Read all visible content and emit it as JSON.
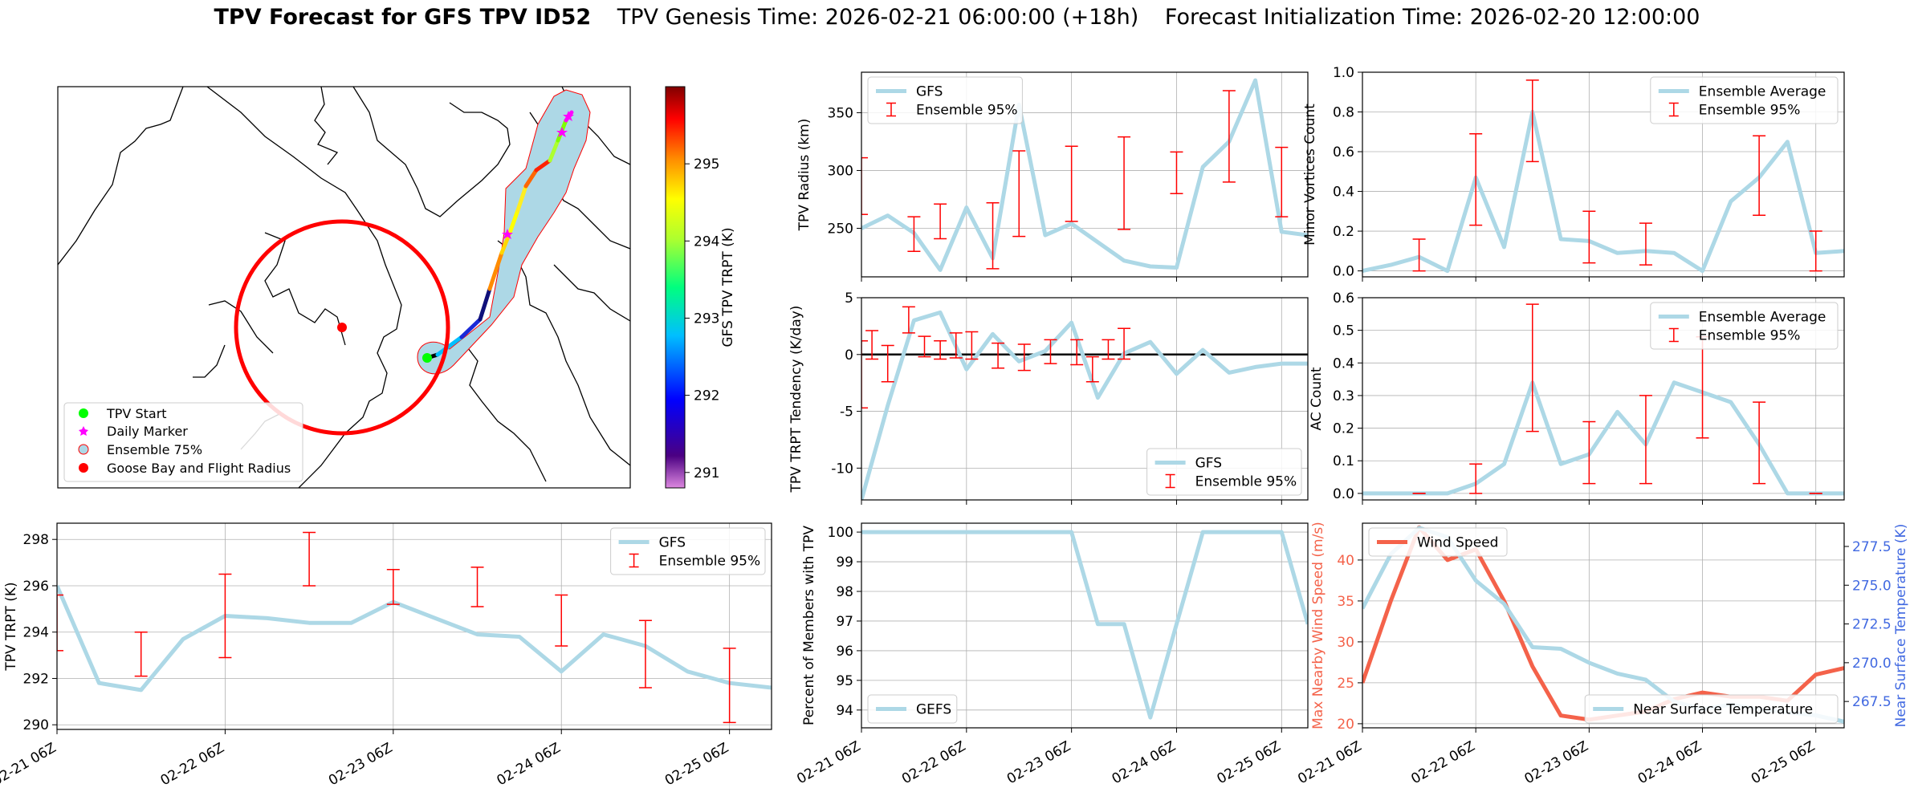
{
  "header": {
    "title_bold": "TPV Forecast for GFS TPV ID52",
    "genesis": "TPV Genesis Time: 2026-02-21 06:00:00 (+18h)",
    "init": "Forecast Initialization Time: 2026-02-20 12:00:00"
  },
  "colors": {
    "line": "#add8e6",
    "error": "#ff0000",
    "wind": "#f4624a",
    "temp_axis": "#4169e1",
    "zero_line": "#000000"
  },
  "map": {
    "colorbar_label": "GFS TPV TRPT (K)",
    "colorbar_ticks": [
      291,
      292,
      293,
      294,
      295
    ],
    "colorbar_range": [
      290.8,
      296.0
    ],
    "legend": [
      {
        "label": "TPV Start",
        "marker": "green-dot"
      },
      {
        "label": "Daily Marker",
        "marker": "magenta-star"
      },
      {
        "label": "Ensemble 75%",
        "marker": "lightblue-circle"
      },
      {
        "label": "Goose Bay and Flight Radius",
        "marker": "red-dot"
      }
    ]
  },
  "chart_data": [
    {
      "id": "trpt",
      "type": "line",
      "title": "",
      "xlabel": "",
      "ylabel": "TPV TRPT (K)",
      "xlim": [
        0,
        4.25
      ],
      "ylim": [
        289.8,
        298.7
      ],
      "yticks": [
        290,
        292,
        294,
        296,
        298
      ],
      "xtick_values": [
        0,
        1,
        2,
        3,
        4
      ],
      "xtick_labels": [
        "02-21 06Z",
        "02-22 06Z",
        "02-23 06Z",
        "02-24 06Z",
        "02-25 06Z"
      ],
      "legend_position": "top-right",
      "legend": [
        {
          "label": "GFS",
          "type": "line"
        },
        {
          "label": "Ensemble 95%",
          "type": "error"
        }
      ],
      "series": [
        {
          "name": "GFS",
          "x": [
            0,
            0.25,
            0.5,
            0.75,
            1,
            1.25,
            1.5,
            1.75,
            2,
            2.25,
            2.5,
            2.75,
            3,
            3.25,
            3.5,
            3.75,
            4,
            4.25
          ],
          "values": [
            296.0,
            291.8,
            291.5,
            293.7,
            294.7,
            294.6,
            294.4,
            294.4,
            295.3,
            294.6,
            293.9,
            293.8,
            292.3,
            293.9,
            293.4,
            292.3,
            291.8,
            291.6
          ]
        }
      ],
      "error_bars": [
        {
          "x": 0,
          "low": 293.2,
          "high": 295.6
        },
        {
          "x": 0.5,
          "low": 292.1,
          "high": 294.0
        },
        {
          "x": 1,
          "low": 292.9,
          "high": 296.5
        },
        {
          "x": 1.5,
          "low": 296.0,
          "high": 298.3
        },
        {
          "x": 2,
          "low": 295.2,
          "high": 296.7
        },
        {
          "x": 2.5,
          "low": 295.1,
          "high": 296.8
        },
        {
          "x": 3,
          "low": 293.4,
          "high": 295.6
        },
        {
          "x": 3.5,
          "low": 291.6,
          "high": 294.5
        },
        {
          "x": 4,
          "low": 290.1,
          "high": 293.3
        }
      ]
    },
    {
      "id": "radius",
      "type": "line",
      "title": "",
      "xlabel": "",
      "ylabel": "TPV Radius (km)",
      "xlim": [
        0,
        4.25
      ],
      "ylim": [
        208,
        385
      ],
      "yticks": [
        250,
        300,
        350
      ],
      "xtick_values": [
        0,
        1,
        2,
        3,
        4
      ],
      "xtick_labels": [],
      "legend_position": "top-left",
      "legend": [
        {
          "label": "GFS",
          "type": "line"
        },
        {
          "label": "Ensemble 95%",
          "type": "error"
        }
      ],
      "series": [
        {
          "name": "GFS",
          "x": [
            0,
            0.25,
            0.5,
            0.75,
            1,
            1.25,
            1.5,
            1.75,
            2,
            2.25,
            2.5,
            2.75,
            3,
            3.25,
            3.5,
            3.75,
            4,
            4.25
          ],
          "values": [
            250,
            261,
            246,
            214,
            268,
            224,
            357,
            244,
            254,
            238,
            222,
            217,
            216,
            303,
            325,
            378,
            247,
            244
          ]
        }
      ],
      "error_bars": [
        {
          "x": 0,
          "low": 262,
          "high": 311
        },
        {
          "x": 0.5,
          "low": 230,
          "high": 260
        },
        {
          "x": 0.75,
          "low": 241,
          "high": 271
        },
        {
          "x": 1.25,
          "low": 215,
          "high": 272
        },
        {
          "x": 1.5,
          "low": 243,
          "high": 317
        },
        {
          "x": 2,
          "low": 256,
          "high": 321
        },
        {
          "x": 2.5,
          "low": 249,
          "high": 329
        },
        {
          "x": 3,
          "low": 280,
          "high": 316
        },
        {
          "x": 3.5,
          "low": 290,
          "high": 369
        },
        {
          "x": 4,
          "low": 260,
          "high": 320
        }
      ]
    },
    {
      "id": "tendency",
      "type": "line",
      "title": "",
      "xlabel": "",
      "ylabel": "TPV TRPT Tendency (K/day)",
      "xlim": [
        0,
        4.25
      ],
      "ylim": [
        -12.8,
        5
      ],
      "yticks": [
        -10,
        -5,
        0,
        5
      ],
      "xtick_values": [
        0,
        1,
        2,
        3,
        4
      ],
      "xtick_labels": [],
      "legend_position": "bottom-right",
      "zero_line": 0,
      "legend": [
        {
          "label": "GFS",
          "type": "line"
        },
        {
          "label": "Ensemble 95%",
          "type": "error"
        }
      ],
      "series": [
        {
          "name": "GFS",
          "x": [
            0,
            0.25,
            0.5,
            0.75,
            1,
            1.25,
            1.5,
            1.75,
            2,
            2.25,
            2.5,
            2.75,
            3,
            3.25,
            3.5,
            3.75,
            4,
            4.25
          ],
          "values": [
            -12.8,
            -4.5,
            3.0,
            3.7,
            -1.3,
            1.8,
            -0.6,
            0.3,
            2.8,
            -3.8,
            0.1,
            1.1,
            -1.7,
            0.4,
            -1.6,
            -1.1,
            -0.8,
            -0.8
          ]
        }
      ],
      "error_bars": [
        {
          "x": 0,
          "low": -4.7,
          "high": 1.2
        },
        {
          "x": 0.1,
          "low": -0.4,
          "high": 2.1
        },
        {
          "x": 0.25,
          "low": -2.4,
          "high": 0.8
        },
        {
          "x": 0.45,
          "low": 1.9,
          "high": 4.2
        },
        {
          "x": 0.6,
          "low": -0.2,
          "high": 1.6
        },
        {
          "x": 0.75,
          "low": -0.4,
          "high": 1.2
        },
        {
          "x": 0.9,
          "low": -0.3,
          "high": 1.9
        },
        {
          "x": 1.05,
          "low": -0.4,
          "high": 2.0
        },
        {
          "x": 1.3,
          "low": -1.2,
          "high": 1.0
        },
        {
          "x": 1.55,
          "low": -1.4,
          "high": 0.9
        },
        {
          "x": 1.8,
          "low": -0.8,
          "high": 1.3
        },
        {
          "x": 2.05,
          "low": -0.9,
          "high": 1.3
        },
        {
          "x": 2.2,
          "low": -2.4,
          "high": -0.2
        },
        {
          "x": 2.35,
          "low": -0.4,
          "high": 1.3
        },
        {
          "x": 2.5,
          "low": -0.4,
          "high": 2.3
        }
      ]
    },
    {
      "id": "members",
      "type": "line",
      "title": "",
      "xlabel": "",
      "ylabel": "Percent of Members with TPV",
      "xlim": [
        0,
        4.25
      ],
      "ylim": [
        93.4,
        100.3
      ],
      "yticks": [
        94,
        95,
        96,
        97,
        98,
        99,
        100
      ],
      "xtick_values": [
        0,
        1,
        2,
        3,
        4
      ],
      "xtick_labels": [
        "02-21 06Z",
        "02-22 06Z",
        "02-23 06Z",
        "02-24 06Z",
        "02-25 06Z"
      ],
      "legend_position": "bottom-left",
      "legend": [
        {
          "label": "GEFS",
          "type": "line"
        }
      ],
      "series": [
        {
          "name": "GEFS",
          "x": [
            0,
            0.25,
            0.5,
            0.75,
            1,
            1.25,
            1.5,
            1.75,
            2,
            2.25,
            2.5,
            2.75,
            3,
            3.25,
            3.5,
            3.75,
            4,
            4.25
          ],
          "values": [
            100,
            100,
            100,
            100,
            100,
            100,
            100,
            100,
            100,
            96.9,
            96.9,
            93.75,
            96.9,
            100,
            100,
            100,
            100,
            96.9
          ]
        }
      ],
      "error_bars": []
    },
    {
      "id": "minor",
      "type": "line",
      "title": "",
      "xlabel": "",
      "ylabel": "Minor Vortices Count",
      "xlim": [
        0,
        4.25
      ],
      "ylim": [
        -0.03,
        1.0
      ],
      "yticks": [
        0.0,
        0.2,
        0.4,
        0.6,
        0.8,
        1.0
      ],
      "xtick_values": [
        0,
        1,
        2,
        3,
        4
      ],
      "xtick_labels": [],
      "legend_position": "top-right",
      "legend": [
        {
          "label": "Ensemble Average",
          "type": "line"
        },
        {
          "label": "Ensemble 95%",
          "type": "error"
        }
      ],
      "series": [
        {
          "name": "Ensemble Average",
          "x": [
            0,
            0.25,
            0.5,
            0.75,
            1,
            1.25,
            1.5,
            1.75,
            2,
            2.25,
            2.5,
            2.75,
            3,
            3.25,
            3.5,
            3.75,
            4,
            4.25
          ],
          "values": [
            0.0,
            0.03,
            0.07,
            0.0,
            0.47,
            0.12,
            0.8,
            0.16,
            0.15,
            0.09,
            0.1,
            0.09,
            0.0,
            0.35,
            0.47,
            0.65,
            0.09,
            0.1
          ]
        }
      ],
      "error_bars": [
        {
          "x": 0.5,
          "low": 0.0,
          "high": 0.16
        },
        {
          "x": 1.0,
          "low": 0.23,
          "high": 0.69
        },
        {
          "x": 1.5,
          "low": 0.55,
          "high": 0.96
        },
        {
          "x": 2.0,
          "low": 0.04,
          "high": 0.3
        },
        {
          "x": 2.5,
          "low": 0.03,
          "high": 0.24
        },
        {
          "x": 3.5,
          "low": 0.28,
          "high": 0.68
        },
        {
          "x": 4.0,
          "low": 0.0,
          "high": 0.2
        }
      ]
    },
    {
      "id": "ac",
      "type": "line",
      "title": "",
      "xlabel": "",
      "ylabel": "AC Count",
      "xlim": [
        0,
        4.25
      ],
      "ylim": [
        -0.02,
        0.6
      ],
      "yticks": [
        0.0,
        0.1,
        0.2,
        0.3,
        0.4,
        0.5,
        0.6
      ],
      "xtick_values": [
        0,
        1,
        2,
        3,
        4
      ],
      "xtick_labels": [],
      "legend_position": "top-right",
      "legend": [
        {
          "label": "Ensemble Average",
          "type": "line"
        },
        {
          "label": "Ensemble 95%",
          "type": "error"
        }
      ],
      "series": [
        {
          "name": "Ensemble Average",
          "x": [
            0,
            0.25,
            0.5,
            0.75,
            1,
            1.25,
            1.5,
            1.75,
            2,
            2.25,
            2.5,
            2.75,
            3,
            3.25,
            3.5,
            3.75,
            4,
            4.25
          ],
          "values": [
            0.0,
            0.0,
            0.0,
            0.0,
            0.03,
            0.09,
            0.34,
            0.09,
            0.12,
            0.25,
            0.15,
            0.34,
            0.31,
            0.28,
            0.15,
            0.0,
            0.0,
            0.0
          ]
        }
      ],
      "error_bars": [
        {
          "x": 0.5,
          "low": 0.0,
          "high": 0.0
        },
        {
          "x": 1.0,
          "low": 0.0,
          "high": 0.09
        },
        {
          "x": 1.5,
          "low": 0.19,
          "high": 0.58
        },
        {
          "x": 2.0,
          "low": 0.03,
          "high": 0.22
        },
        {
          "x": 2.5,
          "low": 0.03,
          "high": 0.3
        },
        {
          "x": 3.0,
          "low": 0.17,
          "high": 0.48
        },
        {
          "x": 3.5,
          "low": 0.03,
          "high": 0.28
        },
        {
          "x": 4.0,
          "low": 0.0,
          "high": 0.0
        }
      ]
    },
    {
      "id": "wind",
      "type": "line",
      "title": "",
      "xlabel": "",
      "ylabel": "Max Nearby Wind Speed (m/s)",
      "ylabel_right": "Near Surface Temperature (K)",
      "xlim": [
        0,
        4.25
      ],
      "ylim": [
        19.5,
        44.5
      ],
      "yticks": [
        20,
        25,
        30,
        35,
        40
      ],
      "ylim_right": [
        265.8,
        279.0
      ],
      "yticks_right": [
        267.5,
        270.0,
        272.5,
        275.0,
        277.5
      ],
      "xtick_values": [
        0,
        1,
        2,
        3,
        4
      ],
      "xtick_labels": [
        "02-21 06Z",
        "02-22 06Z",
        "02-23 06Z",
        "02-24 06Z",
        "02-25 06Z"
      ],
      "legend": [
        {
          "label": "Wind Speed",
          "type": "line",
          "position": "top-left"
        },
        {
          "label": "Near Surface Temperature",
          "type": "line",
          "position": "bottom-right"
        }
      ],
      "series": [
        {
          "name": "Wind Speed",
          "axis": "left",
          "x": [
            0,
            0.25,
            0.5,
            0.75,
            1,
            1.25,
            1.5,
            1.75,
            2,
            2.25,
            2.5,
            2.75,
            3,
            3.25,
            3.5,
            3.75,
            4,
            4.25
          ],
          "values": [
            25,
            35,
            44,
            40,
            41.3,
            35,
            27,
            21,
            20.5,
            21,
            21.5,
            23,
            23.8,
            23.3,
            23.3,
            22.8,
            26,
            26.8
          ]
        },
        {
          "name": "Near Surface Temperature",
          "axis": "right",
          "x": [
            0,
            0.25,
            0.5,
            0.75,
            1,
            1.25,
            1.5,
            1.75,
            2,
            2.25,
            2.5,
            2.75,
            3,
            3.25,
            3.5,
            3.75,
            4,
            4.25
          ],
          "values": [
            273.5,
            277.0,
            278.7,
            278.1,
            275.3,
            273.8,
            271.0,
            270.9,
            270.0,
            269.3,
            268.9,
            267.5,
            267.0,
            267.3,
            267.0,
            266.8,
            266.6,
            266.2
          ]
        }
      ],
      "error_bars": []
    }
  ]
}
